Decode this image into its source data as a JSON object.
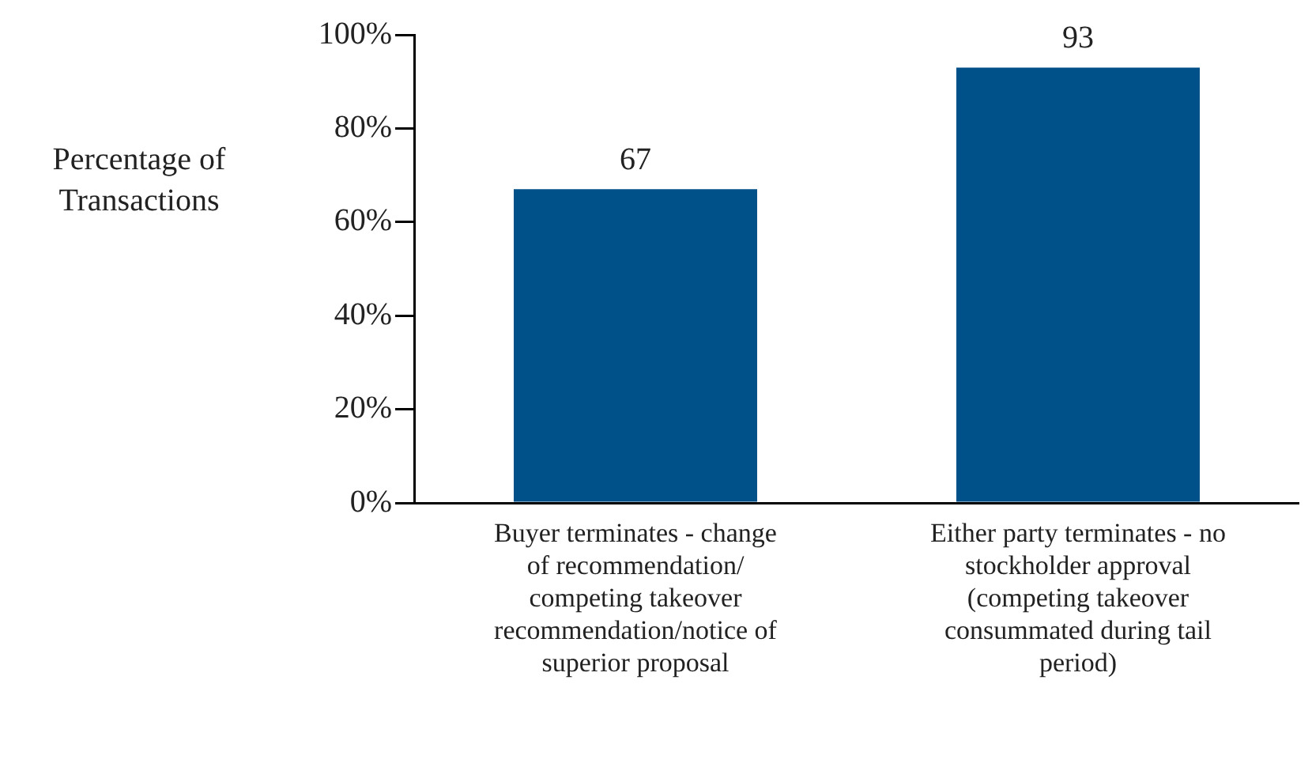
{
  "chart_data": {
    "type": "bar",
    "ylabel": "Percentage of Transactions",
    "categories": [
      "Buyer terminates - change of recommendation/ competing takeover recommendation/notice of superior proposal",
      "Either party terminates - no stockholder approval (competing takeover consummated during tail period)"
    ],
    "values": [
      67,
      93
    ],
    "color": "#00508a",
    "ylim": [
      0,
      100
    ],
    "yticks": [
      {
        "value": 0,
        "label": "0%"
      },
      {
        "value": 20,
        "label": "20%"
      },
      {
        "value": 40,
        "label": "40%"
      },
      {
        "value": 60,
        "label": "60%"
      },
      {
        "value": 80,
        "label": "80%"
      },
      {
        "value": 100,
        "label": "100%"
      }
    ],
    "data_labels": true,
    "grid": false,
    "legend": false
  }
}
